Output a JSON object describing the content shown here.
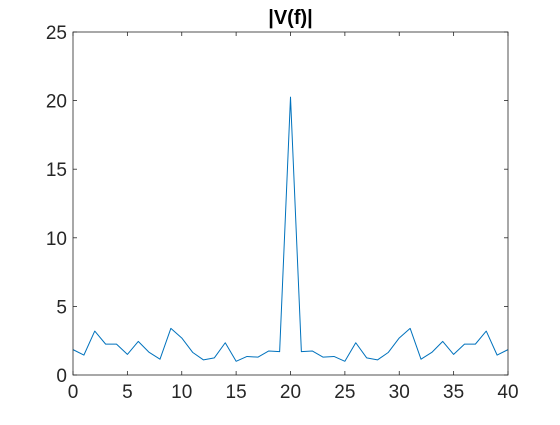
{
  "chart_data": {
    "type": "line",
    "title": "|V(f)|",
    "xlabel": "",
    "ylabel": "",
    "xlim": [
      0,
      40
    ],
    "ylim": [
      0,
      25
    ],
    "xticks": [
      0,
      5,
      10,
      15,
      20,
      25,
      30,
      35,
      40
    ],
    "yticks": [
      0,
      5,
      10,
      15,
      20,
      25
    ],
    "xtick_labels": [
      "0",
      "5",
      "10",
      "15",
      "20",
      "25",
      "30",
      "35",
      "40"
    ],
    "ytick_labels": [
      "0",
      "5",
      "10",
      "15",
      "20",
      "25"
    ],
    "grid": false,
    "box": true,
    "series": [
      {
        "color": "#0072BD",
        "x": [
          0,
          1,
          2,
          3,
          4,
          5,
          6,
          7,
          8,
          9,
          10,
          11,
          12,
          13,
          14,
          15,
          16,
          17,
          18,
          19,
          20,
          21,
          22,
          23,
          24,
          25,
          26,
          27,
          28,
          29,
          30,
          31,
          32,
          33,
          34,
          35,
          36,
          37,
          38,
          39,
          40
        ],
        "y": [
          1.85,
          1.45,
          3.2,
          2.25,
          2.25,
          1.5,
          2.45,
          1.65,
          1.15,
          3.4,
          2.7,
          1.65,
          1.1,
          1.25,
          2.35,
          1.0,
          1.35,
          1.3,
          1.75,
          1.7,
          20.25,
          1.7,
          1.75,
          1.3,
          1.35,
          1.0,
          2.35,
          1.25,
          1.1,
          1.65,
          2.7,
          3.4,
          1.15,
          1.65,
          2.45,
          1.5,
          2.25,
          2.25,
          3.2,
          1.45,
          1.85
        ]
      }
    ]
  }
}
